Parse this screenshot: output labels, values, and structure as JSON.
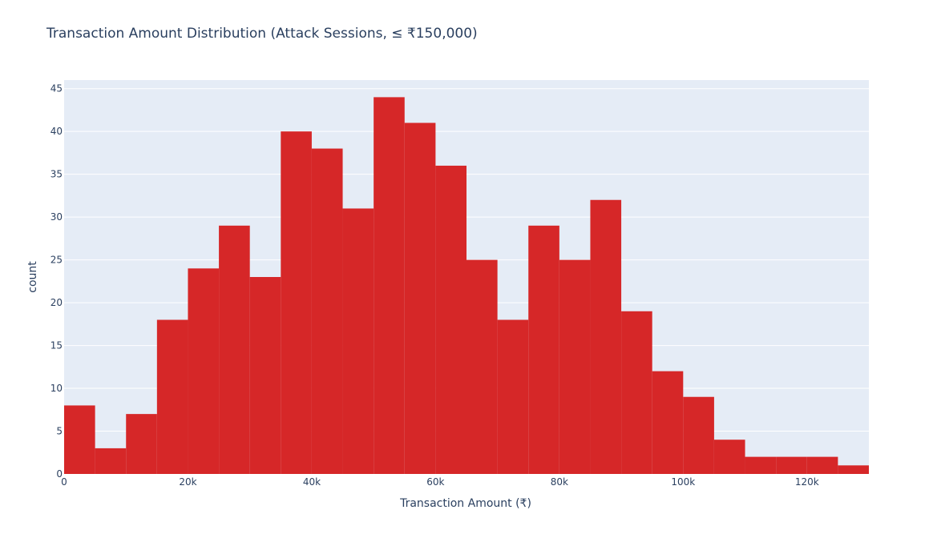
{
  "chart_data": {
    "type": "bar",
    "title": "Transaction Amount Distribution (Attack Sessions, ≤ ₹150,000)",
    "xlabel": "Transaction Amount (₹)",
    "ylabel": "count",
    "bin_width": 5000,
    "bins_start": [
      0,
      5000,
      10000,
      15000,
      20000,
      25000,
      30000,
      35000,
      40000,
      45000,
      50000,
      55000,
      60000,
      65000,
      70000,
      75000,
      80000,
      85000,
      90000,
      95000,
      100000,
      105000,
      110000,
      115000,
      120000,
      125000
    ],
    "values": [
      8,
      3,
      7,
      18,
      24,
      29,
      23,
      40,
      38,
      31,
      44,
      41,
      36,
      25,
      18,
      29,
      25,
      32,
      19,
      12,
      9,
      4,
      2,
      2,
      2,
      1
    ],
    "xlim": [
      0,
      130000
    ],
    "ylim": [
      0,
      46
    ],
    "x_ticks": [
      0,
      20000,
      40000,
      60000,
      80000,
      100000,
      120000
    ],
    "x_tick_labels": [
      "0",
      "20k",
      "40k",
      "60k",
      "80k",
      "100k",
      "120k"
    ],
    "y_ticks": [
      0,
      5,
      10,
      15,
      20,
      25,
      30,
      35,
      40,
      45
    ],
    "y_tick_labels": [
      "0",
      "5",
      "10",
      "15",
      "20",
      "25",
      "30",
      "35",
      "40",
      "45"
    ],
    "grid": true,
    "colors": {
      "bar": "#d62728",
      "plot_bg": "#e5ecf6",
      "grid": "#ffffff",
      "text": "#2a3f5f"
    }
  }
}
